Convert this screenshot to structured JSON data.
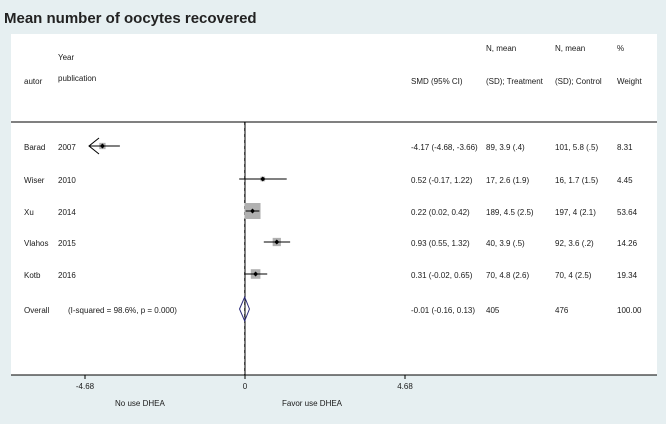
{
  "page": {
    "title": "Mean number of oocytes recovered"
  },
  "headers": {
    "autor": "autor",
    "year_line1": "Year",
    "year_line2": "publication",
    "smd": "SMD (95% CI)",
    "treat_line1": "N, mean",
    "treat_line2": "(SD); Treatment",
    "control_line1": "N, mean",
    "control_line2": "(SD); Control",
    "weight_line1": "%",
    "weight_line2": "Weight"
  },
  "rows": [
    {
      "author": "Barad",
      "year": "2007",
      "ci_text": "-4.17 (-4.68, -3.66)",
      "treatment": "89, 3.9 (.4)",
      "control": "101, 5.8 (.5)",
      "weight": "8.31"
    },
    {
      "author": "Wiser",
      "year": "2010",
      "ci_text": "0.52 (-0.17, 1.22)",
      "treatment": "17, 2.6 (1.9)",
      "control": "16, 1.7 (1.5)",
      "weight": "4.45"
    },
    {
      "author": "Xu",
      "year": "2014",
      "ci_text": "0.22 (0.02, 0.42)",
      "treatment": "189, 4.5 (2.5)",
      "control": "197, 4 (2.1)",
      "weight": "53.64"
    },
    {
      "author": "Vlahos",
      "year": "2015",
      "ci_text": "0.93 (0.55, 1.32)",
      "treatment": "40, 3.9 (.5)",
      "control": "92, 3.6 (.2)",
      "weight": "14.26"
    },
    {
      "author": "Kotb",
      "year": "2016",
      "ci_text": "0.31 (-0.02, 0.65)",
      "treatment": "70, 4.8 (2.6)",
      "control": "70, 4 (2.5)",
      "weight": "19.34"
    }
  ],
  "overall": {
    "label": "Overall",
    "heterogeneity": "(I-squared = 98.6%, p = 0.000)",
    "ci_text": "-0.01 (-0.16, 0.13)",
    "treatment": "405",
    "control": "476",
    "weight": "100.00"
  },
  "axis": {
    "ticks": [
      "-4.68",
      "0",
      "4.68"
    ],
    "left_label": "No use DHEA",
    "right_label": "Favor use DHEA"
  },
  "chart_data": {
    "type": "forest",
    "title": "Mean number of oocytes recovered",
    "xlim": [
      -4.68,
      4.68
    ],
    "xticks": [
      -4.68,
      0,
      4.68
    ],
    "null_line": 0,
    "studies": [
      {
        "name": "Barad 2007",
        "smd": -4.17,
        "lower": -4.68,
        "upper": -3.66,
        "weight": 8.31,
        "ci_truncated_left": true
      },
      {
        "name": "Wiser 2010",
        "smd": 0.52,
        "lower": -0.17,
        "upper": 1.22,
        "weight": 4.45
      },
      {
        "name": "Xu 2014",
        "smd": 0.22,
        "lower": 0.02,
        "upper": 0.42,
        "weight": 53.64
      },
      {
        "name": "Vlahos 2015",
        "smd": 0.93,
        "lower": 0.55,
        "upper": 1.32,
        "weight": 14.26
      },
      {
        "name": "Kotb 2016",
        "smd": 0.31,
        "lower": -0.02,
        "upper": 0.65,
        "weight": 19.34
      }
    ],
    "overall": {
      "smd": -0.01,
      "lower": -0.16,
      "upper": 0.13,
      "weight": 100.0
    },
    "colors": {
      "box": "#b0b0b0",
      "diamond": "#2c2c7a",
      "line": "#000000",
      "background": "#e6eff1",
      "panel": "#ffffff"
    }
  }
}
